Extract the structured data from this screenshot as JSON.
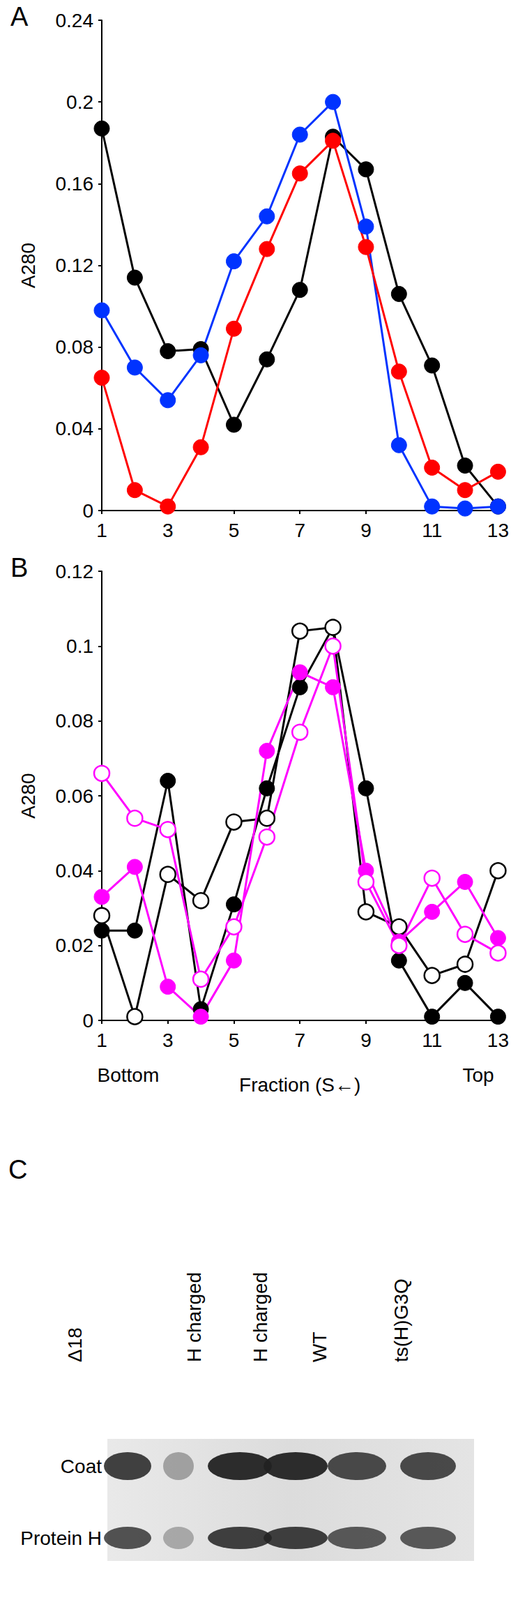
{
  "chart_data": [
    {
      "type": "line",
      "title": "A",
      "y_label": "A280",
      "x": [
        1,
        2,
        3,
        4,
        5,
        6,
        7,
        8,
        9,
        10,
        11,
        12,
        13
      ],
      "xlim": [
        1,
        13
      ],
      "xticks": [
        1,
        3,
        5,
        7,
        9,
        11,
        13
      ],
      "ylim": [
        0,
        0.24
      ],
      "yticks": [
        0,
        0.04,
        0.08,
        0.12,
        0.16,
        0.2,
        0.24
      ],
      "grid": false,
      "series": [
        {
          "color": "#000000",
          "marker": "filled",
          "values": [
            0.187,
            0.114,
            0.078,
            0.079,
            0.042,
            0.074,
            0.108,
            0.183,
            0.167,
            0.106,
            0.071,
            0.022,
            0.002
          ]
        },
        {
          "color": "#0033ff",
          "marker": "filled",
          "values": [
            0.098,
            0.07,
            0.054,
            0.076,
            0.122,
            0.144,
            0.184,
            0.2,
            0.139,
            0.032,
            0.002,
            0.001,
            0.002
          ]
        },
        {
          "color": "#ff0000",
          "marker": "filled",
          "values": [
            0.065,
            0.01,
            0.002,
            0.031,
            0.089,
            0.128,
            0.165,
            0.181,
            0.129,
            0.068,
            0.021,
            0.01,
            0.019
          ]
        }
      ]
    },
    {
      "type": "line",
      "title": "B",
      "y_label": "A280",
      "x_label": "Fraction (S←)",
      "annotations": [
        {
          "text": "Bottom",
          "x": 1.8
        },
        {
          "text": "Top",
          "x": 12.4
        }
      ],
      "x": [
        1,
        2,
        3,
        4,
        5,
        6,
        7,
        8,
        9,
        10,
        11,
        12,
        13
      ],
      "xlim": [
        1,
        13
      ],
      "xticks": [
        1,
        3,
        5,
        7,
        9,
        11,
        13
      ],
      "ylim": [
        0,
        0.12
      ],
      "yticks": [
        0,
        0.02,
        0.04,
        0.06,
        0.08,
        0.1,
        0.12
      ],
      "grid": false,
      "series": [
        {
          "color": "#000000",
          "marker": "filled",
          "values": [
            0.024,
            0.024,
            0.064,
            0.003,
            0.031,
            0.062,
            0.089,
            0.105,
            0.062,
            0.016,
            0.001,
            0.01,
            0.001
          ]
        },
        {
          "color": "#000000",
          "marker": "open",
          "values": [
            0.028,
            0.001,
            0.039,
            0.032,
            0.053,
            0.054,
            0.104,
            0.105,
            0.029,
            0.025,
            0.012,
            0.015,
            0.04
          ]
        },
        {
          "color": "#ff00ff",
          "marker": "filled",
          "values": [
            0.033,
            0.041,
            0.009,
            0.001,
            0.016,
            0.072,
            0.093,
            0.089,
            0.04,
            0.021,
            0.029,
            0.037,
            0.022
          ]
        },
        {
          "color": "#ff00ff",
          "marker": "open",
          "values": [
            0.066,
            0.054,
            0.051,
            0.011,
            0.025,
            0.049,
            0.077,
            0.1,
            0.037,
            0.02,
            0.038,
            0.023,
            0.018
          ]
        }
      ]
    }
  ],
  "panel_c": {
    "title": "C",
    "lanes": [
      "Δ18",
      null,
      "H charged",
      "H charged",
      "WT",
      "ts(H)G3Q"
    ],
    "rows": [
      "Coat",
      "Protein H"
    ]
  }
}
